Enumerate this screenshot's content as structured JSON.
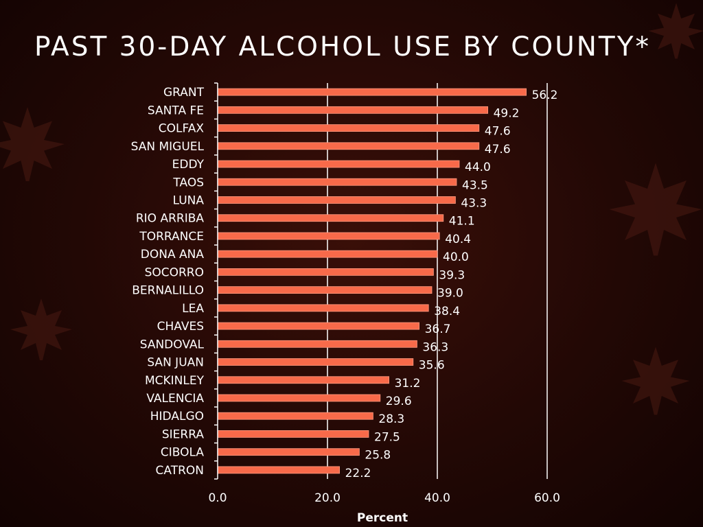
{
  "title": "PAST 30-DAY ALCOHOL USE BY COUNTY*",
  "colors": {
    "bar": "#f86a4a",
    "bar_edge": "#ff9a80",
    "text": "#ffffff",
    "grid": "#ffffff"
  },
  "decoration": [
    "maple-leaf-icon",
    "maple-leaf-icon",
    "maple-leaf-icon",
    "maple-leaf-icon",
    "maple-leaf-icon"
  ],
  "chart_data": {
    "type": "bar",
    "orientation": "horizontal",
    "xlabel": "Percent",
    "ylabel": "",
    "xlim": [
      0,
      60
    ],
    "xticks": [
      "0.0",
      "20.0",
      "40.0",
      "60.0"
    ],
    "grid": "vertical",
    "categories": [
      "GRANT",
      "SANTA FE",
      "COLFAX",
      "SAN MIGUEL",
      "EDDY",
      "TAOS",
      "LUNA",
      "RIO ARRIBA",
      "TORRANCE",
      "DONA ANA",
      "SOCORRO",
      "BERNALILLO",
      "LEA",
      "CHAVES",
      "SANDOVAL",
      "SAN JUAN",
      "MCKINLEY",
      "VALENCIA",
      "HIDALGO",
      "SIERRA",
      "CIBOLA",
      "CATRON"
    ],
    "values": [
      56.2,
      49.2,
      47.6,
      47.6,
      44.0,
      43.5,
      43.3,
      41.1,
      40.4,
      40.0,
      39.3,
      39.0,
      38.4,
      36.7,
      36.3,
      35.6,
      31.2,
      29.6,
      28.3,
      27.5,
      25.8,
      22.2
    ],
    "value_labels": [
      "56.2",
      "49.2",
      "47.6",
      "47.6",
      "44.0",
      "43.5",
      "43.3",
      "41.1",
      "40.4",
      "40.0",
      "39.3",
      "39.0",
      "38.4",
      "36.7",
      "36.3",
      "35.6",
      "31.2",
      "29.6",
      "28.3",
      "27.5",
      "25.8",
      "22.2"
    ]
  }
}
